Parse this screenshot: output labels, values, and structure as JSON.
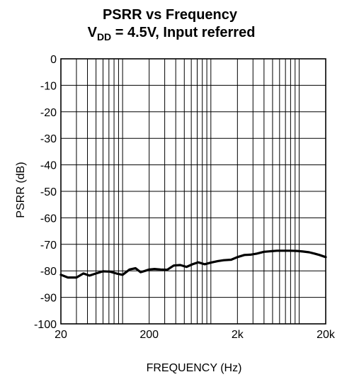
{
  "chart_data": {
    "type": "line",
    "title": "PSRR vs Frequency",
    "subtitle": {
      "prefix": "V",
      "subscript": "DD",
      "suffix": " = 4.5V, Input referred"
    },
    "xlabel": "FREQUENCY (Hz)",
    "ylabel": "PSRR (dB)",
    "xscale": "log",
    "xlim": [
      20,
      20000
    ],
    "ylim": [
      -100,
      0
    ],
    "grid": true,
    "x_ticks": [
      {
        "value": 20,
        "label": "20"
      },
      {
        "value": 200,
        "label": "200"
      },
      {
        "value": 2000,
        "label": "2k"
      },
      {
        "value": 20000,
        "label": "20k"
      }
    ],
    "y_ticks": [
      {
        "value": 0,
        "label": "0"
      },
      {
        "value": -10,
        "label": "-10"
      },
      {
        "value": -20,
        "label": "-20"
      },
      {
        "value": -30,
        "label": "-30"
      },
      {
        "value": -40,
        "label": "-40"
      },
      {
        "value": -50,
        "label": "-50"
      },
      {
        "value": -60,
        "label": "-60"
      },
      {
        "value": -70,
        "label": "-70"
      },
      {
        "value": -80,
        "label": "-80"
      },
      {
        "value": -90,
        "label": "-90"
      },
      {
        "value": -100,
        "label": "-100"
      }
    ],
    "series": [
      {
        "color": "#000000",
        "x": [
          20,
          24,
          30,
          36,
          42,
          50,
          60,
          72,
          85,
          100,
          120,
          140,
          160,
          180,
          200,
          230,
          270,
          320,
          380,
          450,
          530,
          620,
          720,
          850,
          1000,
          1200,
          1400,
          1700,
          2000,
          2400,
          2800,
          3300,
          4000,
          4800,
          5600,
          6600,
          8000,
          9500,
          11000,
          13000,
          15000,
          17000,
          20000
        ],
        "y": [
          -81.5,
          -82.5,
          -82.5,
          -81,
          -81.8,
          -81,
          -80.2,
          -80.3,
          -81,
          -81.5,
          -79.5,
          -79,
          -80.5,
          -80,
          -79.5,
          -79.3,
          -79.5,
          -79.6,
          -78,
          -77.8,
          -78.5,
          -77.5,
          -76.8,
          -77.5,
          -76.9,
          -76.3,
          -76,
          -75.8,
          -74.8,
          -74,
          -73.9,
          -73.5,
          -72.8,
          -72.6,
          -72.4,
          -72.4,
          -72.4,
          -72.5,
          -72.7,
          -73,
          -73.5,
          -74,
          -74.8
        ]
      }
    ]
  }
}
